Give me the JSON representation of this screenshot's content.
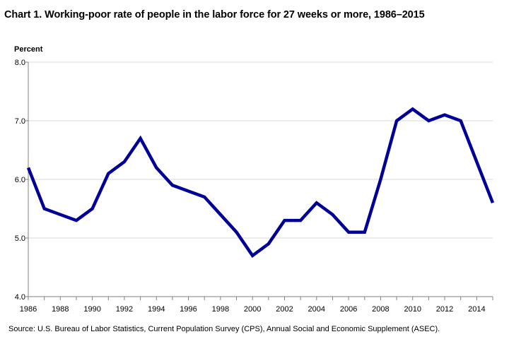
{
  "chart_data": {
    "type": "line",
    "title": "Chart 1. Working-poor rate of people in the labor force for 27 weeks or more, 1986–2015",
    "ylabel": "Percent",
    "xlabel": "",
    "source": "Source: U.S. Bureau of Labor Statistics, Current Population Survey (CPS), Annual Social and Economic Supplement (ASEC).",
    "ylim": [
      4.0,
      8.0
    ],
    "xlim": [
      1986,
      2015
    ],
    "yticks": [
      "4.0",
      "5.0",
      "6.0",
      "7.0",
      "8.0"
    ],
    "xticks": [
      "1986",
      "1988",
      "1990",
      "1992",
      "1994",
      "1996",
      "1998",
      "2000",
      "2002",
      "2004",
      "2006",
      "2008",
      "2010",
      "2012",
      "2014"
    ],
    "grid": true,
    "x": [
      1986,
      1987,
      1988,
      1989,
      1990,
      1991,
      1992,
      1993,
      1994,
      1995,
      1996,
      1997,
      1998,
      1999,
      2000,
      2001,
      2002,
      2003,
      2004,
      2005,
      2006,
      2007,
      2008,
      2009,
      2010,
      2011,
      2012,
      2013,
      2014,
      2015
    ],
    "series": [
      {
        "color": "#000099",
        "values": [
          6.2,
          5.5,
          5.4,
          5.3,
          5.5,
          6.1,
          6.3,
          6.7,
          6.2,
          5.9,
          5.8,
          5.7,
          5.4,
          5.1,
          4.7,
          4.9,
          5.3,
          5.3,
          5.6,
          5.4,
          5.1,
          5.1,
          6.0,
          7.0,
          7.2,
          7.0,
          7.1,
          7.0,
          6.3,
          5.6
        ]
      }
    ],
    "colors": {
      "line": "#000099",
      "grid": "#d9d9d9",
      "axis": "#808080"
    }
  }
}
